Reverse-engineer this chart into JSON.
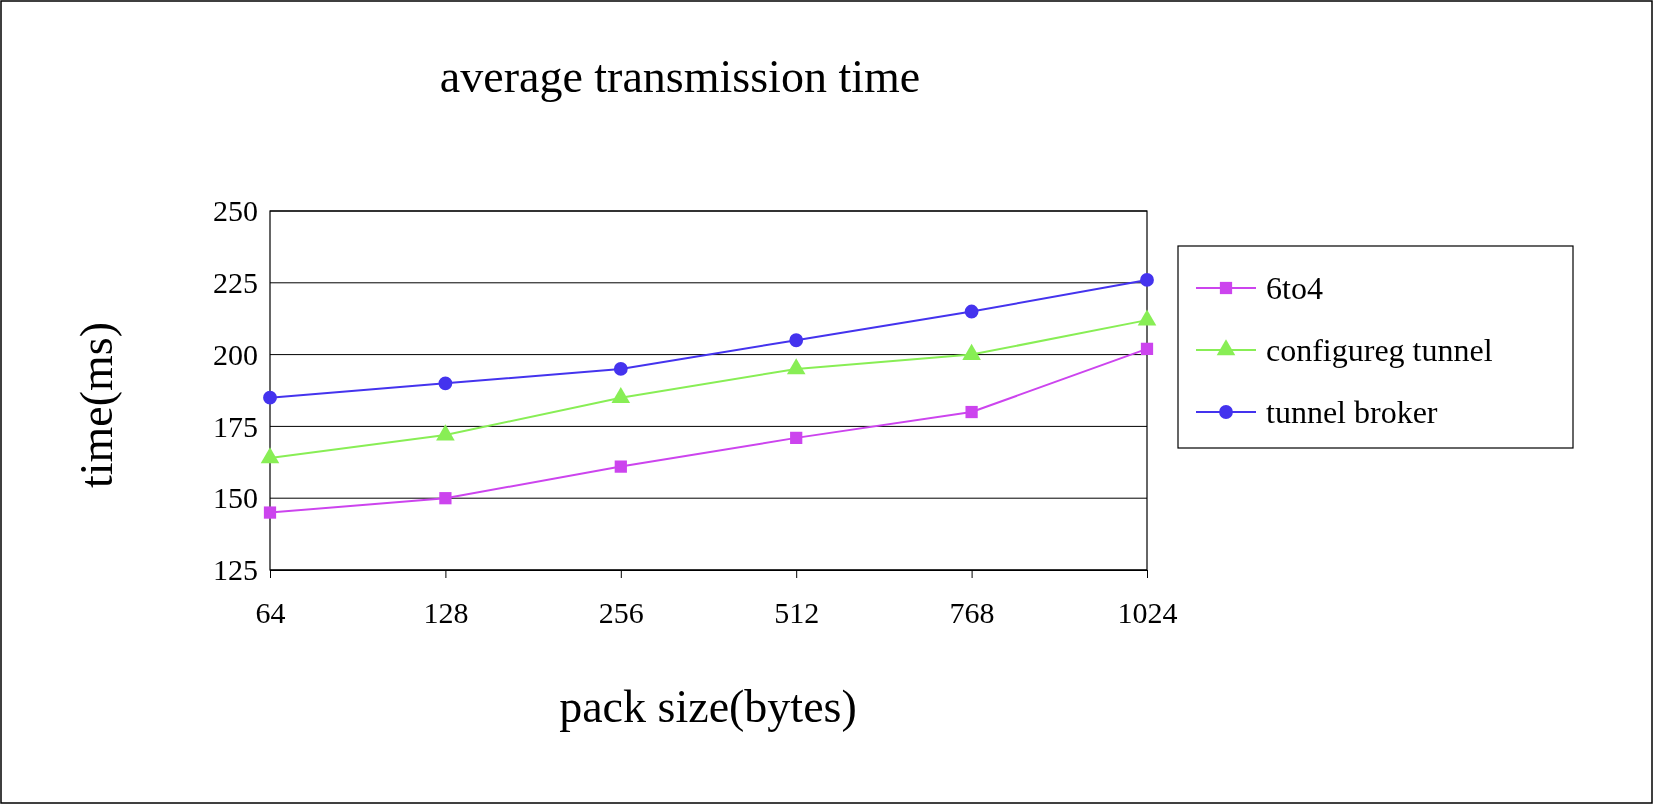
{
  "chart_data": {
    "type": "line",
    "title": "average transmission time",
    "xlabel": "pack size(bytes)",
    "ylabel": "time(ms)",
    "categories": [
      "64",
      "128",
      "256",
      "512",
      "768",
      "1024"
    ],
    "ylim": [
      125,
      250
    ],
    "yticks": [
      125,
      150,
      175,
      200,
      225,
      250
    ],
    "grid": "y",
    "legend": "right",
    "series": [
      {
        "name": "6to4",
        "color": "#cc44ee",
        "marker": "square",
        "values": [
          145,
          150,
          161,
          171,
          180,
          202
        ]
      },
      {
        "name": "configureg tunnel",
        "color": "#88ee55",
        "marker": "triangle",
        "values": [
          164,
          172,
          185,
          195,
          200,
          212
        ]
      },
      {
        "name": "tunnel broker",
        "color": "#4433ee",
        "marker": "circle",
        "values": [
          185,
          190,
          195,
          205,
          215,
          226
        ]
      }
    ]
  }
}
